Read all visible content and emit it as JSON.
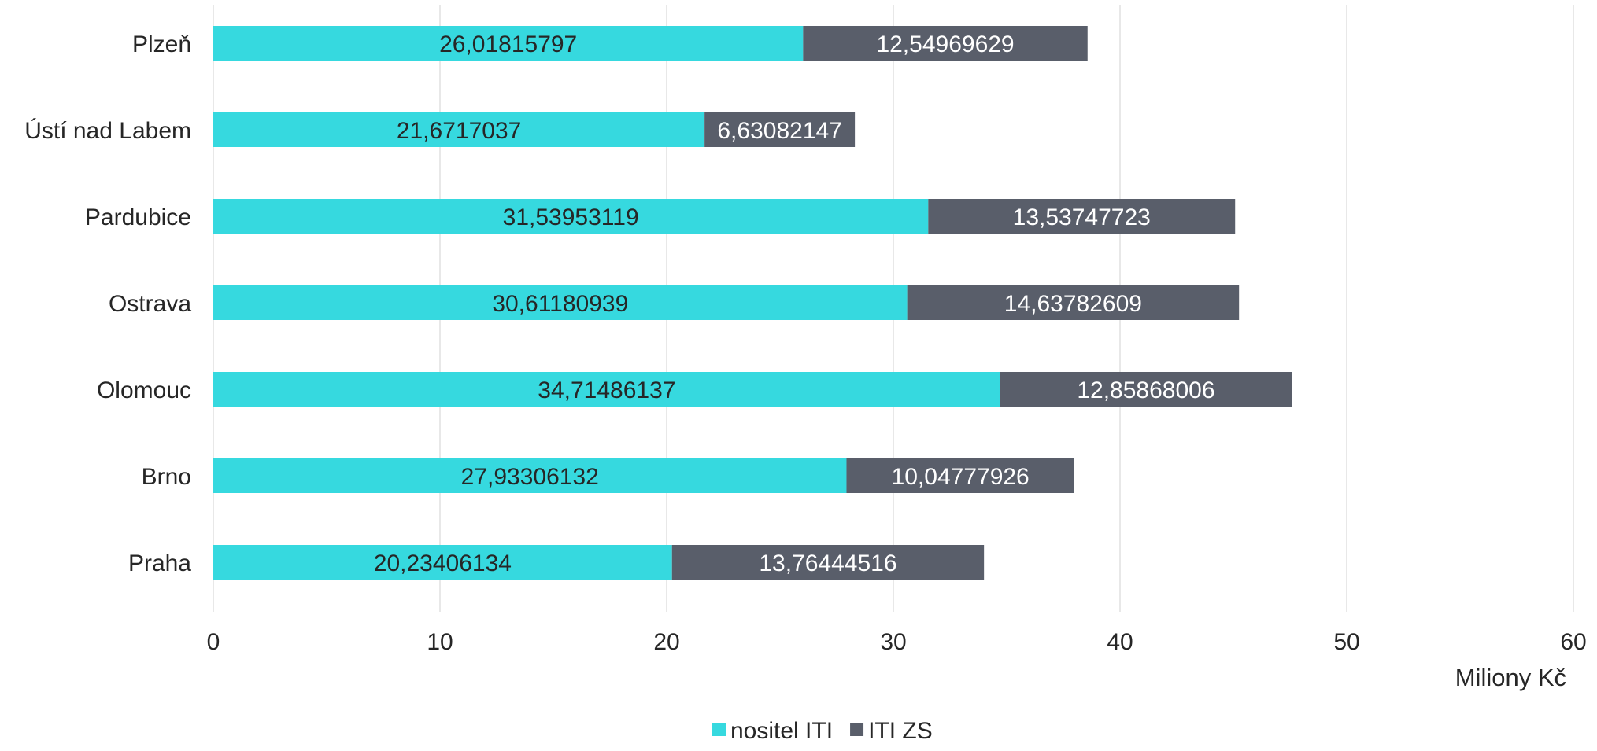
{
  "chart_data": {
    "type": "bar",
    "orientation": "horizontal",
    "stacked": true,
    "categories": [
      "Plzeň",
      "Ústí nad Labem",
      "Pardubice",
      "Ostrava",
      "Olomouc",
      "Brno",
      "Praha"
    ],
    "series": [
      {
        "name": "nositel ITI",
        "color": "#36d9df",
        "label_color": "#262626",
        "values": [
          26.01815797,
          21.6717037,
          31.53953119,
          30.61180939,
          34.71486137,
          27.93306132,
          20.23406134
        ],
        "labels": [
          "26,01815797",
          "21,6717037",
          "31,53953119",
          "30,61180939",
          "34,71486137",
          "27,93306132",
          "20,23406134"
        ]
      },
      {
        "name": "ITI ZS",
        "color": "#595e6a",
        "label_color": "#ffffff",
        "values": [
          12.54969629,
          6.63082147,
          13.53747723,
          14.63782609,
          12.85868006,
          10.04777926,
          13.76444516
        ],
        "labels": [
          "12,54969629",
          "6,63082147",
          "13,53747723",
          "14,63782609",
          "12,85868006",
          "10,04777926",
          "13,76444516"
        ]
      }
    ],
    "xlim": [
      0,
      60
    ],
    "x_ticks": [
      0,
      10,
      20,
      30,
      40,
      50,
      60
    ],
    "x_tick_labels": [
      "0",
      "10",
      "20",
      "30",
      "40",
      "50",
      "60"
    ],
    "xlabel": "Miliony Kč",
    "grid": "vertical",
    "legend": "bottom-center"
  }
}
